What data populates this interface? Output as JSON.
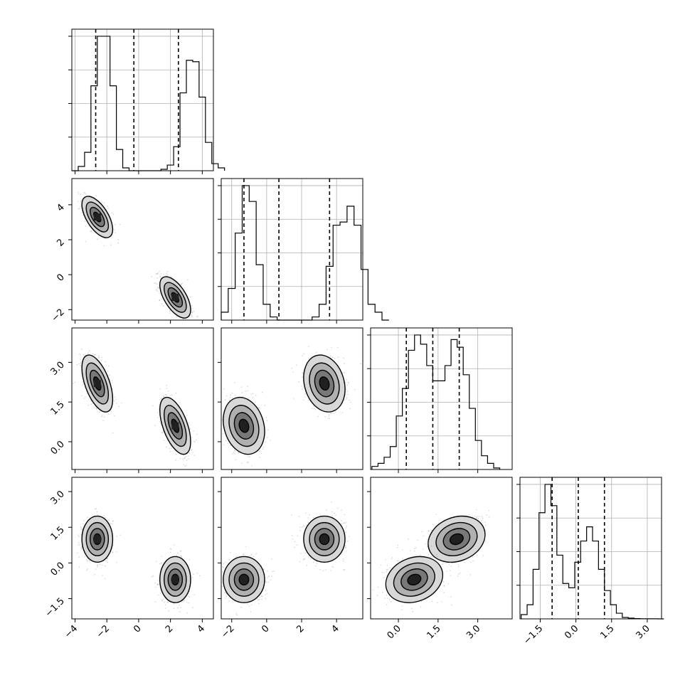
{
  "chart_data": {
    "type": "corner",
    "parameters": 4,
    "grid": true,
    "colors": {
      "ink": "#000000",
      "grid": "#b0b0b0",
      "scatter": "#808080"
    },
    "axes": [
      {
        "range": [
          -4.2,
          4.7
        ],
        "ticks": [
          -4,
          -2,
          0,
          2,
          4
        ],
        "tick_labels": [
          "−4",
          "−2",
          "0",
          "2",
          "4"
        ]
      },
      {
        "range": [
          -2.6,
          5.5
        ],
        "ticks": [
          -2,
          0,
          2,
          4
        ],
        "tick_labels": [
          "−2",
          "0",
          "2",
          "4"
        ]
      },
      {
        "range": [
          -1.05,
          4.3
        ],
        "ticks": [
          0,
          1.5,
          3
        ],
        "tick_labels": [
          "0.0",
          "1.5",
          "3.0"
        ]
      },
      {
        "range": [
          -2.35,
          3.6
        ],
        "ticks": [
          -1.5,
          0,
          1.5,
          3
        ],
        "tick_labels": [
          "−1.5",
          "0.0",
          "1.5",
          "3.0"
        ]
      }
    ],
    "histograms": [
      {
        "bin_edges": [
          -4.2,
          3.5
        ],
        "bin_width": 0.4,
        "counts": [
          0,
          0.03,
          0.13,
          0.6,
          0.95,
          0.95,
          0.6,
          0.15,
          0.02,
          0,
          0,
          0,
          0,
          0,
          0.01,
          0.04,
          0.17,
          0.55,
          0.78,
          0.77,
          0.52,
          0.2,
          0.05,
          0.02
        ],
        "quantiles": [
          -2.7,
          -0.3,
          2.5
        ]
      },
      {
        "bin_edges": [
          -2.6,
          5.1
        ],
        "bin_width": 0.4,
        "counts": [
          0.05,
          0.2,
          0.55,
          0.85,
          0.75,
          0.35,
          0.1,
          0.02,
          0,
          0,
          0,
          0,
          0,
          0.02,
          0.1,
          0.34,
          0.6,
          0.62,
          0.72,
          0.6,
          0.32,
          0.1,
          0.05,
          0
        ],
        "quantiles": [
          -1.3,
          0.7,
          3.6
        ]
      },
      {
        "bin_edges": [
          -1.0,
          4.2
        ],
        "bin_width": 0.23,
        "counts": [
          0.02,
          0.04,
          0.08,
          0.15,
          0.35,
          0.53,
          0.78,
          0.88,
          0.82,
          0.68,
          0.58,
          0.58,
          0.68,
          0.85,
          0.8,
          0.62,
          0.4,
          0.19,
          0.09,
          0.04,
          0.01
        ],
        "quantiles": [
          0.3,
          1.3,
          2.3
        ]
      },
      {
        "bin_edges": [
          -2.3,
          3.5
        ],
        "bin_width": 0.25,
        "counts": [
          0.03,
          0.1,
          0.35,
          0.75,
          0.95,
          0.8,
          0.45,
          0.25,
          0.22,
          0.4,
          0.55,
          0.65,
          0.55,
          0.35,
          0.2,
          0.1,
          0.04,
          0.01,
          0.005,
          0.002,
          0.001,
          0.001,
          0.001,
          0.0
        ],
        "quantiles": [
          -1.0,
          0.1,
          1.2
        ]
      }
    ],
    "modes": [
      [
        -2.6,
        3.3,
        2.2,
        1.0
      ],
      [
        2.3,
        -1.3,
        0.6,
        -0.7
      ]
    ],
    "correlations": {
      "1-0": -0.6,
      "2-0": -0.55,
      "2-1": -0.2,
      "3-0": 0.0,
      "3-1": 0.0,
      "3-2": 0.2
    },
    "marginal_sd": [
      0.45,
      0.55,
      0.5,
      0.45
    ]
  }
}
